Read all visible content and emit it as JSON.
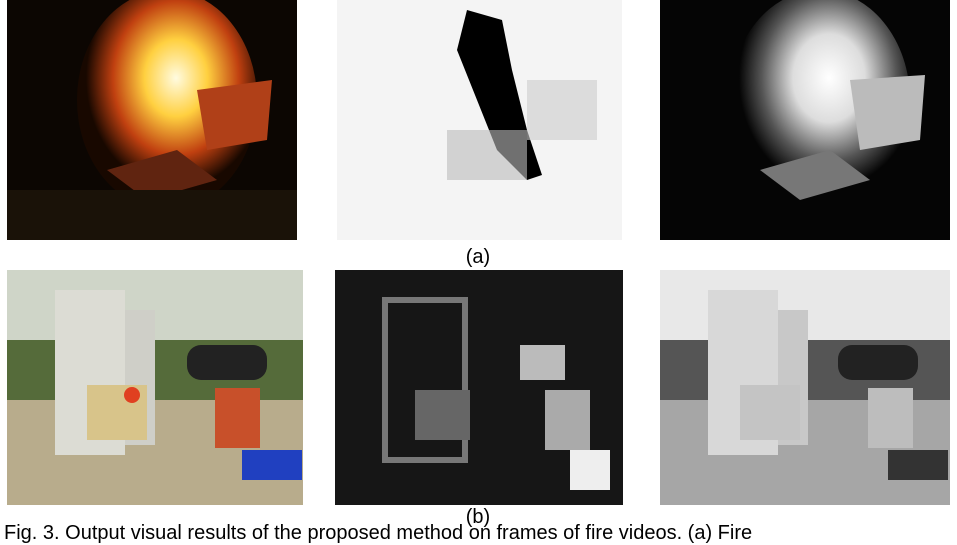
{
  "figure": {
    "row_a_label": "(a)",
    "row_b_label": "(b)",
    "caption": "Fig. 3. Output visual results of the proposed method on frames of fire videos. (a) Fire"
  }
}
